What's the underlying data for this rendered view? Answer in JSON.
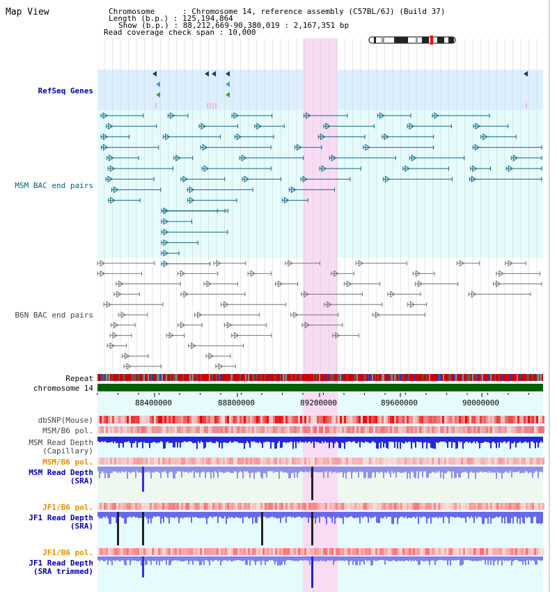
{
  "map_title": "Map View",
  "header": {
    "chromosome": "Chromosome      : Chromosome 14, reference assembly (C57BL/6J) (Build 37)",
    "length": "Length (b.p.) : 125,194,864",
    "show": "Show (b.p.) : 88,212,669-90,380,019 : 2,167,351 bp",
    "coverage": "Read coverage check span : 10,000"
  },
  "tracks": {
    "refseq": "RefSeq Genes",
    "msm_bac": "MSM BAC end pairs",
    "b6n_bac": "B6N BAC end pairs",
    "repeat": "Repeat",
    "chromosome": "chromosome 14",
    "dbsnp": "dbSNP(Mouse)",
    "msm_b6_pol_1": "MSM/B6 pol.",
    "msm_depth_cap_1": "MSM Read Depth",
    "msm_depth_cap_2": "(Capillary)",
    "msm_b6_pol_2": "MSM/B6 pol.",
    "msm_depth_sra_1": "MSM Read Depth",
    "msm_depth_sra_2": "(SRA)",
    "jf1_b6_pol_1": "JF1/B6 pol.",
    "jf1_depth_sra_1": "JF1 Read Depth",
    "jf1_depth_sra_2": "(SRA)",
    "jf1_b6_pol_2": "JF1/B6 pol.",
    "jf1_depth_trim_1": "JF1 Read Depth",
    "jf1_depth_trim_2": "(SRA trimmed)"
  },
  "axis_ticks": [
    "88400000",
    "88800000",
    "89200000",
    "89600000",
    "90000000"
  ],
  "colors": {
    "refseq_bg": "#dcefff",
    "msm_bg": "#e6fbfb",
    "highlight": "#f8dcf4",
    "chromosome": "#006000",
    "repeat": "#cc0000",
    "msm_feature": "#0a6a80",
    "b6n_feature": "#707070",
    "depth_blue": "#2020e0",
    "depth_light": "#8080f0"
  }
}
